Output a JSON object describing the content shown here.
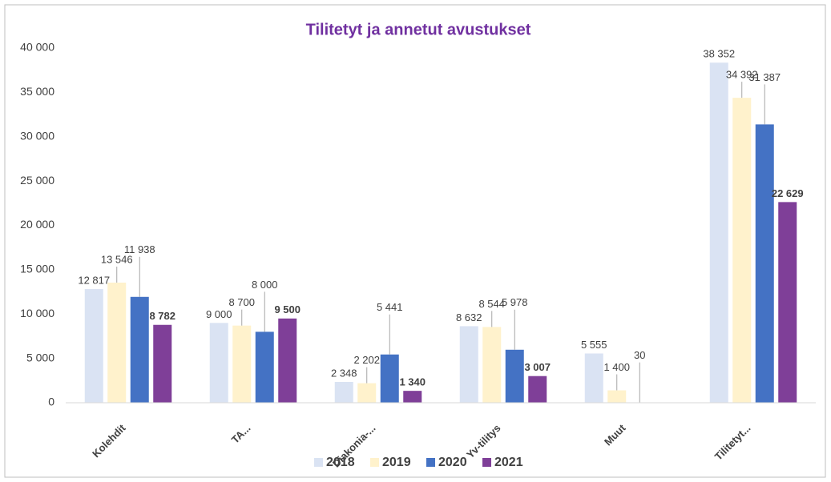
{
  "chart_data": {
    "type": "bar",
    "title": "Tilitetyt ja annetut avustukset",
    "categories": [
      "Kolehdit",
      "TA...",
      "Diakonia-...",
      "Yv-tilitys",
      "Muut",
      "Tilitetyt..."
    ],
    "series": [
      {
        "name": "2018",
        "color": "#dae3f3",
        "values": [
          12817,
          9000,
          2348,
          8632,
          5555,
          38352
        ],
        "value_labels": [
          "12 817",
          "9 000",
          "2 348",
          "8 632",
          "5 555",
          "38 352"
        ]
      },
      {
        "name": "2019",
        "color": "#fff2cc",
        "values": [
          13546,
          8700,
          2202,
          8544,
          1400,
          34392
        ],
        "value_labels": [
          "13 546",
          "8 700",
          "2 202",
          "8 544",
          "1 400",
          "34 392"
        ]
      },
      {
        "name": "2020",
        "color": "#4472c4",
        "values": [
          11938,
          8000,
          5441,
          5978,
          30,
          31387
        ],
        "value_labels": [
          "11 938",
          "8 000",
          "5 441",
          "5 978",
          "30",
          "31 387"
        ]
      },
      {
        "name": "2021",
        "color": "#7f3f98",
        "values": [
          8782,
          9500,
          1340,
          3007,
          null,
          22629
        ],
        "value_labels": [
          "8 782",
          "9 500",
          "1 340",
          "3 007",
          null,
          "22 629"
        ]
      }
    ],
    "ylim": [
      0,
      40000
    ],
    "yticks": [
      0,
      {
        "value": 5000,
        "label": "5 000"
      },
      {
        "value": 10000,
        "label": "10 000"
      },
      {
        "value": 15000,
        "label": "15 000"
      },
      {
        "value": 20000,
        "label": "20 000"
      },
      {
        "value": 25000,
        "label": "25 000"
      },
      {
        "value": 30000,
        "label": "30 000"
      },
      {
        "value": 35000,
        "label": "35 000"
      },
      {
        "value": 40000,
        "label": "40 000"
      }
    ],
    "grid": false,
    "legend": "bottom"
  }
}
